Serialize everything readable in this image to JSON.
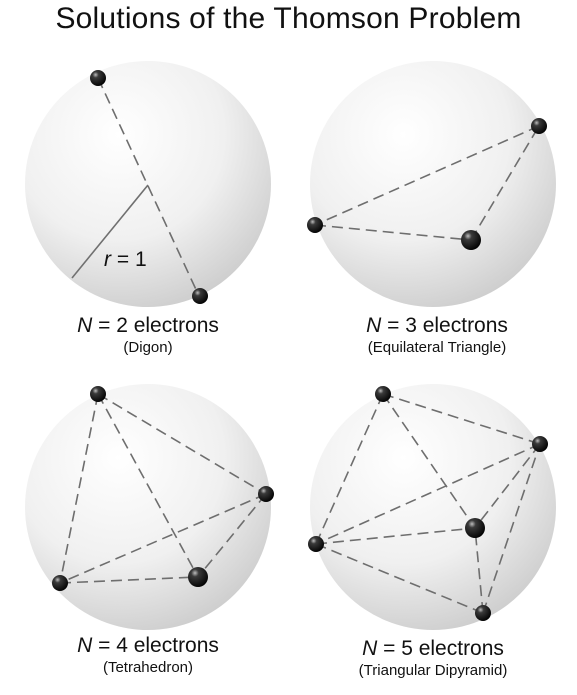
{
  "title": "Solutions of the Thomson Problem",
  "panels": [
    {
      "n_symbol": "N",
      "main": "= 2 electrons",
      "sub": "(Digon)",
      "radius_label_var": "r",
      "radius_label_val": "= 1"
    },
    {
      "n_symbol": "N",
      "main": "= 3 electrons",
      "sub": "(Equilateral Triangle)"
    },
    {
      "n_symbol": "N",
      "main": "= 4 electrons",
      "sub": "(Tetrahedron)"
    },
    {
      "n_symbol": "N",
      "main": "= 5 electrons",
      "sub": "(Triangular Dipyramid)"
    }
  ],
  "colors": {
    "sphere_light": "#ffffff",
    "sphere_dark": "#c8c8c8",
    "edge": "#707070",
    "electron": "#000000"
  }
}
